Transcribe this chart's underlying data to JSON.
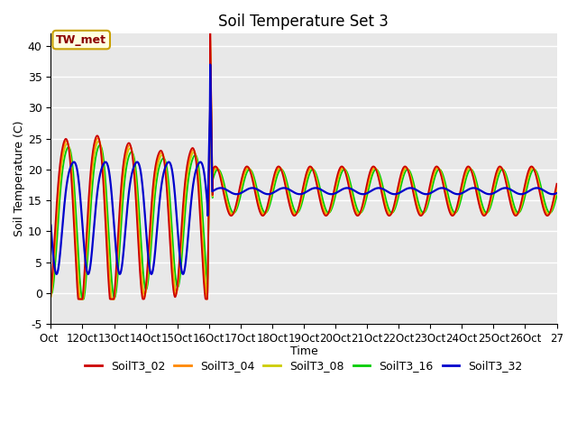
{
  "title": "Soil Temperature Set 3",
  "xlabel": "Time",
  "ylabel": "Soil Temperature (C)",
  "ylim": [
    -5,
    42
  ],
  "ytick_values": [
    -5,
    0,
    5,
    10,
    15,
    20,
    25,
    30,
    35,
    40
  ],
  "xtick_positions": [
    0,
    24,
    48,
    72,
    96,
    120,
    144,
    168,
    192,
    216,
    240,
    264,
    288,
    312,
    336,
    360,
    384
  ],
  "xtick_labels": [
    "Oct ",
    "12Oct",
    "13Oct",
    "14Oct",
    "15Oct",
    "16Oct",
    "17Oct",
    "18Oct",
    "19Oct",
    "20Oct",
    "21Oct",
    "22Oct",
    "23Oct",
    "24Oct",
    "25Oct",
    "26Oct",
    "27"
  ],
  "colors": {
    "SoilT3_02": "#cc0000",
    "SoilT3_04": "#ff8800",
    "SoilT3_08": "#cccc00",
    "SoilT3_16": "#00cc00",
    "SoilT3_32": "#0000cc"
  },
  "annotation_text": "TW_met",
  "bg_color": "#e8e8e8",
  "fig_bg": "#ffffff",
  "legend_labels": [
    "SoilT3_02",
    "SoilT3_04",
    "SoilT3_08",
    "SoilT3_16",
    "SoilT3_32"
  ]
}
